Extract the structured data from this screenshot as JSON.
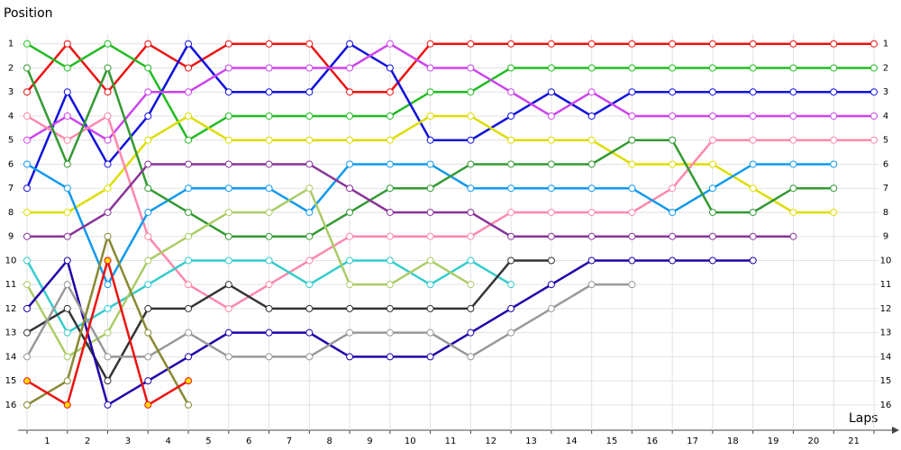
{
  "chart_data": {
    "type": "line",
    "y_label": "Position",
    "x_label": "Laps",
    "x": [
      0,
      1,
      2,
      3,
      4,
      5,
      6,
      7,
      8,
      9,
      10,
      11,
      12,
      13,
      14,
      15,
      16,
      17,
      18,
      19,
      20,
      21
    ],
    "xlim": [
      0,
      21
    ],
    "xticks": [
      {
        "value": 0.5,
        "label": "1"
      },
      {
        "value": 1.5,
        "label": "2"
      },
      {
        "value": 2.5,
        "label": "3"
      },
      {
        "value": 3.5,
        "label": "4"
      },
      {
        "value": 4.5,
        "label": "5"
      },
      {
        "value": 5.5,
        "label": "6"
      },
      {
        "value": 6.5,
        "label": "7"
      },
      {
        "value": 7.5,
        "label": "8"
      },
      {
        "value": 8.5,
        "label": "9"
      },
      {
        "value": 9.5,
        "label": "10"
      },
      {
        "value": 10.5,
        "label": "11"
      },
      {
        "value": 11.5,
        "label": "12"
      },
      {
        "value": 12.5,
        "label": "13"
      },
      {
        "value": 13.5,
        "label": "14"
      },
      {
        "value": 14.5,
        "label": "15"
      },
      {
        "value": 15.5,
        "label": "16"
      },
      {
        "value": 16.5,
        "label": "17"
      },
      {
        "value": 17.5,
        "label": "18"
      },
      {
        "value": 18.5,
        "label": "19"
      },
      {
        "value": 19.5,
        "label": "20"
      },
      {
        "value": 20.5,
        "label": "21"
      }
    ],
    "ylim": [
      17.05,
      0.3
    ],
    "yticks": [
      1,
      2,
      3,
      4,
      5,
      6,
      7,
      8,
      9,
      10,
      11,
      12,
      13,
      14,
      15,
      16
    ],
    "grid": true,
    "series": [
      {
        "color": "#ee1111",
        "values": [
          3,
          1,
          3,
          1,
          2,
          1,
          1,
          1,
          3,
          3,
          1,
          1,
          1,
          1,
          1,
          1,
          1,
          1,
          1,
          1,
          1,
          1
        ]
      },
      {
        "color": "#22bb22",
        "values": [
          1,
          2,
          1,
          2,
          5,
          4,
          4,
          4,
          4,
          4,
          3,
          3,
          2,
          2,
          2,
          2,
          2,
          2,
          2,
          2,
          2,
          2
        ]
      },
      {
        "color": "#1111dd",
        "values": [
          7,
          3,
          6,
          4,
          1,
          3,
          3,
          3,
          1,
          2,
          5,
          5,
          4,
          3,
          4,
          3,
          3,
          3,
          3,
          3,
          3,
          3
        ]
      },
      {
        "color": "#cc44ee",
        "values": [
          5,
          4,
          5,
          3,
          3,
          2,
          2,
          2,
          2,
          1,
          2,
          2,
          3,
          4,
          3,
          4,
          4,
          4,
          4,
          4,
          4,
          4
        ]
      },
      {
        "color": "#dddd00",
        "values": [
          8,
          8,
          7,
          5,
          4,
          5,
          5,
          5,
          5,
          5,
          4,
          4,
          5,
          5,
          5,
          6,
          6,
          6,
          7,
          8,
          8,
          null
        ]
      },
      {
        "color": "#ff88aa",
        "values": [
          4,
          5,
          4,
          9,
          11,
          12,
          11,
          10,
          9,
          9,
          9,
          9,
          8,
          8,
          8,
          8,
          7,
          5,
          5,
          5,
          5,
          5
        ]
      },
      {
        "color": "#1199ee",
        "values": [
          6,
          7,
          11,
          8,
          7,
          7,
          7,
          8,
          6,
          6,
          6,
          7,
          7,
          7,
          7,
          7,
          8,
          7,
          6,
          6,
          6,
          null
        ]
      },
      {
        "color": "#339933",
        "values": [
          2,
          6,
          2,
          7,
          8,
          9,
          9,
          9,
          8,
          7,
          7,
          6,
          6,
          6,
          6,
          5,
          5,
          8,
          8,
          7,
          7,
          null
        ]
      },
      {
        "color": "#883399",
        "values": [
          9,
          9,
          8,
          6,
          6,
          6,
          6,
          6,
          7,
          8,
          8,
          8,
          9,
          9,
          9,
          9,
          9,
          9,
          9,
          9,
          null,
          null
        ]
      },
      {
        "color": "#33cccc",
        "values": [
          10,
          13,
          12,
          11,
          10,
          10,
          10,
          11,
          10,
          10,
          11,
          10,
          11,
          null,
          null,
          null,
          null,
          null,
          null,
          null,
          null,
          null
        ]
      },
      {
        "color": "#aacc66",
        "values": [
          11,
          14,
          13,
          10,
          9,
          8,
          8,
          7,
          11,
          11,
          10,
          11,
          null,
          null,
          null,
          null,
          null,
          null,
          null,
          null,
          null,
          null
        ]
      },
      {
        "color": "#333333",
        "values": [
          13,
          12,
          15,
          12,
          12,
          11,
          12,
          12,
          12,
          12,
          12,
          12,
          10,
          10,
          null,
          null,
          null,
          null,
          null,
          null,
          null,
          null
        ]
      },
      {
        "color": "#2200aa",
        "values": [
          12,
          10,
          16,
          15,
          14,
          13,
          13,
          13,
          14,
          14,
          14,
          13,
          12,
          11,
          10,
          10,
          10,
          10,
          10,
          null,
          null,
          null
        ]
      },
      {
        "color": "#999999",
        "values": [
          14,
          11,
          14,
          14,
          13,
          14,
          14,
          14,
          13,
          13,
          13,
          14,
          13,
          12,
          11,
          11,
          null,
          null,
          null,
          null,
          null,
          null
        ]
      },
      {
        "color": "#888833",
        "values": [
          16,
          15,
          9,
          13,
          16,
          null,
          null,
          null,
          null,
          null,
          null,
          null,
          null,
          null,
          null,
          null,
          null,
          null,
          null,
          null,
          null,
          null
        ]
      },
      {
        "color": "#ee1111",
        "marker_fill": "#ffdd00",
        "values": [
          15,
          16,
          10,
          16,
          15,
          null,
          null,
          null,
          null,
          null,
          null,
          null,
          null,
          null,
          null,
          null,
          null,
          null,
          null,
          null,
          null,
          null
        ]
      }
    ]
  }
}
